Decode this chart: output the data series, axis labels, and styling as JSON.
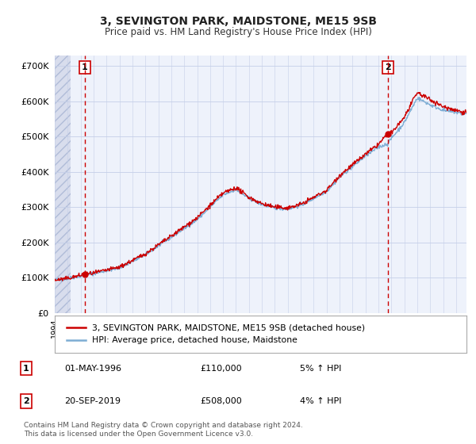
{
  "title": "3, SEVINGTON PARK, MAIDSTONE, ME15 9SB",
  "subtitle": "Price paid vs. HM Land Registry's House Price Index (HPI)",
  "ylabel_ticks": [
    "£0",
    "£100K",
    "£200K",
    "£300K",
    "£400K",
    "£500K",
    "£600K",
    "£700K"
  ],
  "ytick_vals": [
    0,
    100000,
    200000,
    300000,
    400000,
    500000,
    600000,
    700000
  ],
  "ylim": [
    0,
    730000
  ],
  "xlim_start": 1994.0,
  "xlim_end": 2025.8,
  "sale1_x": 1996.33,
  "sale1_y": 110000,
  "sale1_label": "1",
  "sale2_x": 2019.72,
  "sale2_y": 508000,
  "sale2_label": "2",
  "hatch_end_x": 1995.2,
  "legend_entries": [
    "3, SEVINGTON PARK, MAIDSTONE, ME15 9SB (detached house)",
    "HPI: Average price, detached house, Maidstone"
  ],
  "table_rows": [
    [
      "1",
      "01-MAY-1996",
      "£110,000",
      "5% ↑ HPI"
    ],
    [
      "2",
      "20-SEP-2019",
      "£508,000",
      "4% ↑ HPI"
    ]
  ],
  "footer": "Contains HM Land Registry data © Crown copyright and database right 2024.\nThis data is licensed under the Open Government Licence v3.0.",
  "bg_color": "#eef2fb",
  "hatch_color": "#d8dded",
  "grid_color": "#c5cfe8",
  "line_color_red": "#cc0000",
  "line_color_blue": "#7dadd4",
  "sale_dot_color": "#cc0000",
  "dashed_line_color": "#cc0000",
  "white": "#ffffff"
}
